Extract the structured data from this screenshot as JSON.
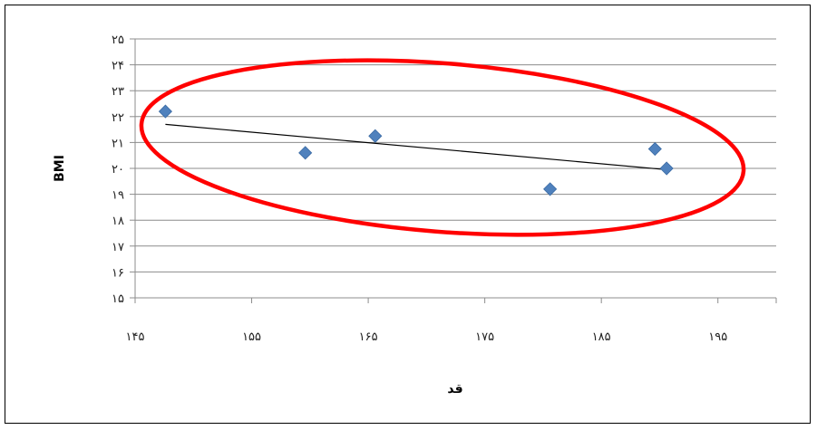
{
  "chart_data": {
    "type": "scatter",
    "title": "",
    "xlabel": "قد",
    "ylabel": "BMI",
    "xlim": [
      145,
      200
    ],
    "ylim": [
      15,
      25
    ],
    "x_ticks": [
      145,
      155,
      165,
      175,
      185,
      195
    ],
    "y_ticks": [
      15,
      16,
      17,
      18,
      19,
      20,
      21,
      22,
      23,
      24,
      25
    ],
    "x_tick_labels": [
      "۱۴۵",
      "۱۵۵",
      "۱۶۵",
      "۱۷۵",
      "۱۸۵",
      "۱۹۵"
    ],
    "y_tick_labels": [
      "۱۵",
      "۱۶",
      "۱۷",
      "۱۸",
      "۱۹",
      "۲۰",
      "۲۱",
      "۲۲",
      "۲۳",
      "۲۴",
      "۲۵"
    ],
    "grid": {
      "horizontal": true,
      "vertical": false
    },
    "series": [
      {
        "marker": "diamond",
        "color": "#4F81BD",
        "points": [
          {
            "x": 147.6,
            "y": 22.2
          },
          {
            "x": 159.6,
            "y": 20.6
          },
          {
            "x": 165.6,
            "y": 21.25
          },
          {
            "x": 180.6,
            "y": 19.2
          },
          {
            "x": 189.6,
            "y": 20.75
          },
          {
            "x": 190.6,
            "y": 20.0
          }
        ]
      }
    ],
    "trendline": {
      "type": "linear",
      "color": "#000000",
      "from": {
        "x": 147.6,
        "y": 21.7
      },
      "to": {
        "x": 190.6,
        "y": 19.95
      }
    },
    "annotation": {
      "shape": "ellipse",
      "color": "#FF0000"
    }
  }
}
